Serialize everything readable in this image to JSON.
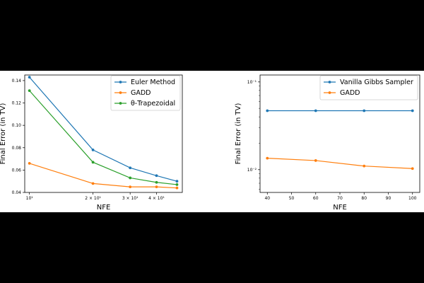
{
  "chart_data": [
    {
      "type": "line",
      "xscale": "log",
      "yscale": "linear",
      "xlabel": "NFE",
      "ylabel": "Final Error (in TV)",
      "xlim": [
        9.5,
        53
      ],
      "ylim": [
        0.04,
        0.145
      ],
      "x": [
        10,
        20,
        30,
        40,
        50
      ],
      "xticks": [
        {
          "value": 10,
          "label": "10¹"
        },
        {
          "value": 20,
          "label": "2 × 10¹"
        },
        {
          "value": 30,
          "label": "3 × 10¹"
        },
        {
          "value": 40,
          "label": "4 × 10¹"
        }
      ],
      "yticks": [
        {
          "value": 0.04,
          "label": "0.04"
        },
        {
          "value": 0.06,
          "label": "0.06"
        },
        {
          "value": 0.08,
          "label": "0.08"
        },
        {
          "value": 0.1,
          "label": "0.10"
        },
        {
          "value": 0.12,
          "label": "0.12"
        },
        {
          "value": 0.14,
          "label": "0.14"
        }
      ],
      "legend": "upper right",
      "series": [
        {
          "name": "Euler Method",
          "color": "#1f77b4",
          "values": [
            0.143,
            0.078,
            0.062,
            0.055,
            0.05
          ]
        },
        {
          "name": "GADD",
          "color": "#ff7f0e",
          "values": [
            0.066,
            0.048,
            0.045,
            0.045,
            0.044
          ]
        },
        {
          "name": "θ-Trapezoidal",
          "color": "#2ca02c",
          "values": [
            0.131,
            0.067,
            0.053,
            0.049,
            0.047
          ]
        }
      ]
    },
    {
      "type": "line",
      "xscale": "linear",
      "yscale": "log",
      "xlabel": "NFE",
      "ylabel": "Final Error (in TV)",
      "xlim": [
        37,
        103
      ],
      "ylim": [
        0.0055,
        0.12
      ],
      "x": [
        40,
        60,
        80,
        100
      ],
      "xticks": [
        {
          "value": 40,
          "label": "40"
        },
        {
          "value": 50,
          "label": "50"
        },
        {
          "value": 60,
          "label": "60"
        },
        {
          "value": 70,
          "label": "70"
        },
        {
          "value": 80,
          "label": "80"
        },
        {
          "value": 90,
          "label": "90"
        },
        {
          "value": 100,
          "label": "100"
        }
      ],
      "yticks": [
        {
          "value": 0.01,
          "label": "10⁻²"
        },
        {
          "value": 0.1,
          "label": "10⁻¹"
        }
      ],
      "legend": "upper right",
      "series": [
        {
          "name": "Vanilla Gibbs Sampler",
          "color": "#1f77b4",
          "values": [
            0.047,
            0.047,
            0.047,
            0.047
          ]
        },
        {
          "name": "GADD",
          "color": "#ff7f0e",
          "values": [
            0.0135,
            0.0127,
            0.011,
            0.0103
          ]
        }
      ]
    }
  ]
}
